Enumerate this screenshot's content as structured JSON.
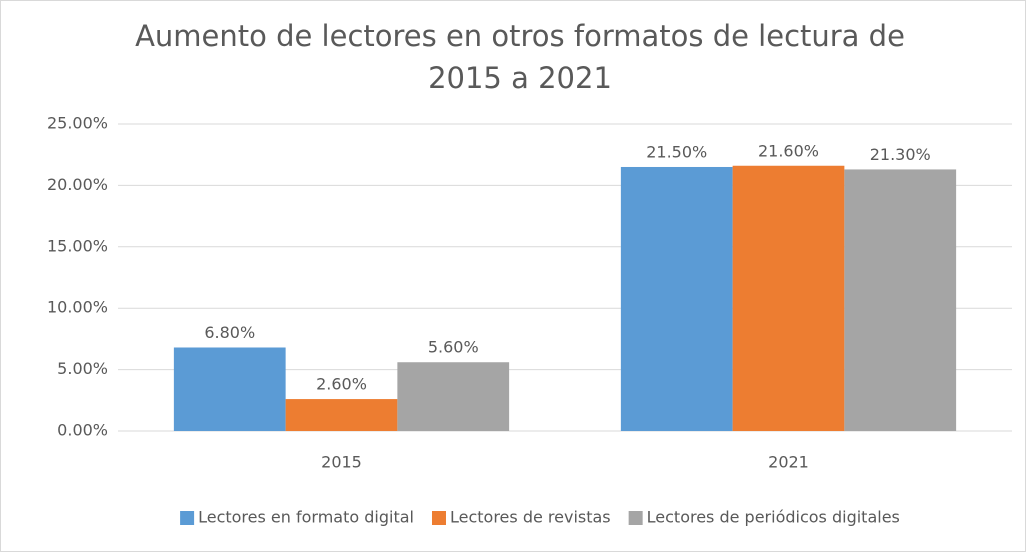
{
  "chart_data": {
    "type": "bar",
    "title": [
      "Aumento de lectores en otros formatos de lectura de",
      "2015 a 2021"
    ],
    "categories": [
      "2015",
      "2021"
    ],
    "series": [
      {
        "name": "Lectores en formato digital",
        "color": "#5b9bd5",
        "values": [
          6.8,
          21.5
        ],
        "value_labels": [
          "6.80%",
          "21.50%"
        ]
      },
      {
        "name": "Lectores de revistas",
        "color": "#ed7d31",
        "values": [
          2.6,
          21.6
        ],
        "value_labels": [
          "2.60%",
          "21.60%"
        ]
      },
      {
        "name": "Lectores de periódicos digitales",
        "color": "#a5a5a5",
        "values": [
          5.6,
          21.3
        ],
        "value_labels": [
          "5.60%",
          "21.30%"
        ]
      }
    ],
    "ylim": [
      0,
      25
    ],
    "yticks": [
      {
        "value": 0,
        "label": "0.00%"
      },
      {
        "value": 5,
        "label": "5.00%"
      },
      {
        "value": 10,
        "label": "10.00%"
      },
      {
        "value": 15,
        "label": "15.00%"
      },
      {
        "value": 20,
        "label": "20.00%"
      },
      {
        "value": 25,
        "label": "25.00%"
      }
    ],
    "grid": true,
    "legend": "bottom"
  }
}
